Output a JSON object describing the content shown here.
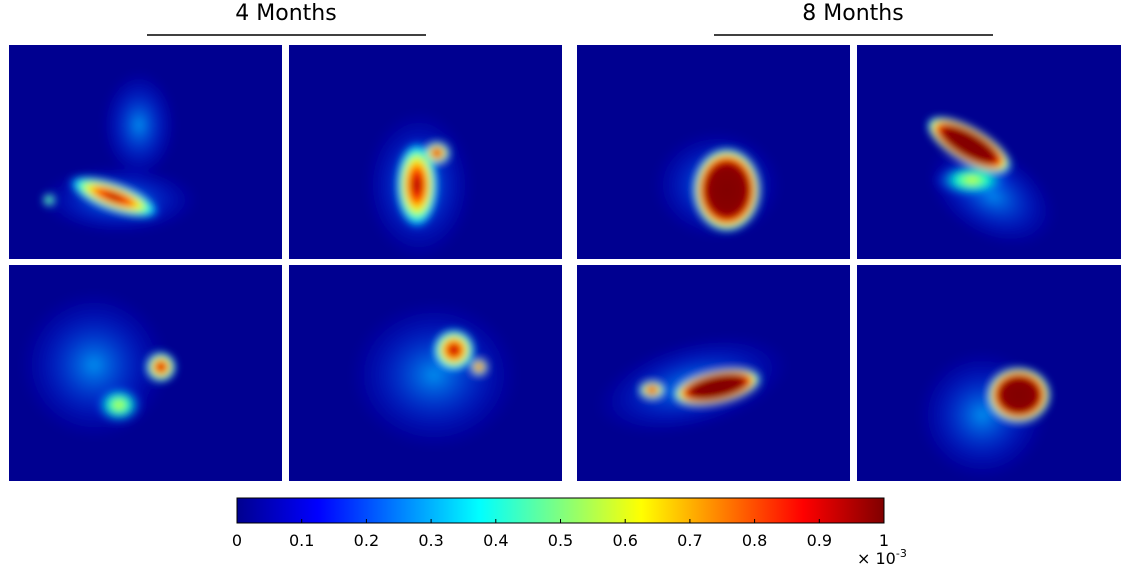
{
  "headers": {
    "left": "4 Months",
    "right": "8 Months"
  },
  "colorbar": {
    "lim": [
      0,
      1
    ],
    "ticks": [
      0,
      0.1,
      0.2,
      0.3,
      0.4,
      0.5,
      0.6,
      0.7,
      0.8,
      0.9,
      1
    ],
    "multiplier": {
      "base": "× 10",
      "exponent": "-3"
    }
  }
}
